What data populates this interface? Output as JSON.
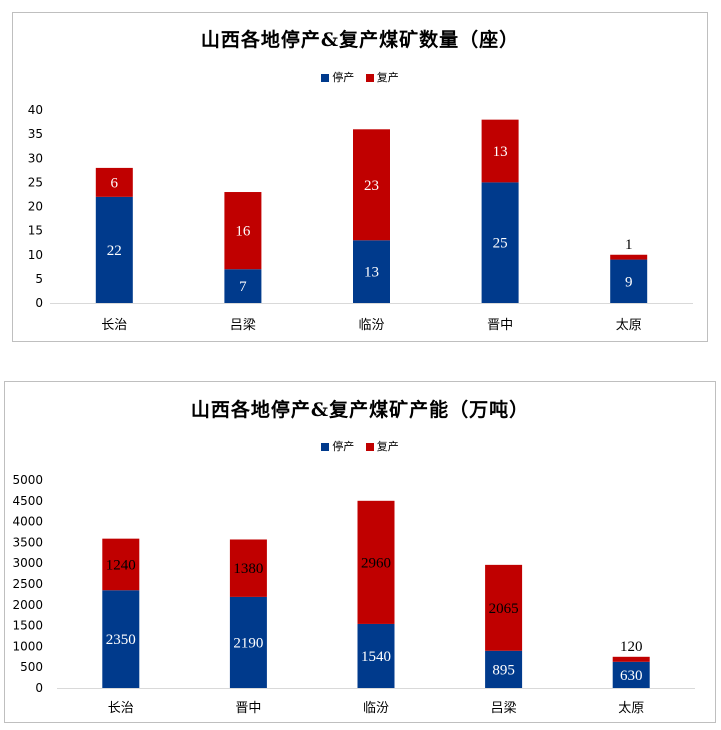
{
  "chart_data": [
    {
      "type": "bar",
      "stacked": true,
      "title": "山西各地停产&复产煤矿数量（座）",
      "categories": [
        "长治",
        "吕梁",
        "临汾",
        "晋中",
        "太原"
      ],
      "series": [
        {
          "name": "停产",
          "values": [
            22,
            7,
            13,
            25,
            9
          ],
          "color": "#003a8c",
          "label_color": "#ffffff"
        },
        {
          "name": "复产",
          "values": [
            6,
            16,
            23,
            13,
            1
          ],
          "color": "#c00000",
          "label_color": "#ffffff"
        }
      ],
      "ylim": [
        0,
        40
      ],
      "yticks": [
        0,
        5,
        10,
        15,
        20,
        25,
        30,
        35,
        40
      ],
      "legend_position": "top",
      "grid": false
    },
    {
      "type": "bar",
      "stacked": true,
      "title": "山西各地停产&复产煤矿产能（万吨）",
      "categories": [
        "长治",
        "晋中",
        "临汾",
        "吕梁",
        "太原"
      ],
      "series": [
        {
          "name": "停产",
          "values": [
            2350,
            2190,
            1540,
            895,
            630
          ],
          "color": "#003a8c",
          "label_color": "#ffffff"
        },
        {
          "name": "复产",
          "values": [
            1240,
            1380,
            2960,
            2065,
            120
          ],
          "color": "#c00000",
          "label_color": "#000000"
        }
      ],
      "ylim": [
        0,
        5000
      ],
      "yticks": [
        0,
        500,
        1000,
        1500,
        2000,
        2500,
        3000,
        3500,
        4000,
        4500,
        5000
      ],
      "legend_position": "top",
      "grid": false
    }
  ]
}
